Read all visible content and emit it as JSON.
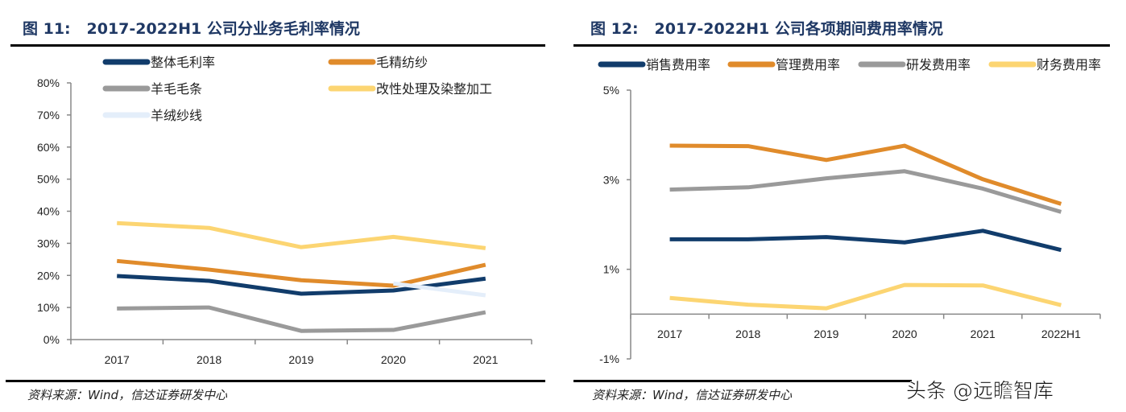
{
  "chart_data": [
    {
      "type": "line",
      "title": "图 11:   2017-2022H1 公司分业务毛利率情况",
      "categories": [
        "2017",
        "2018",
        "2019",
        "2020",
        "2021"
      ],
      "ylim": [
        0,
        80
      ],
      "yticks": [
        "0%",
        "10%",
        "20%",
        "30%",
        "40%",
        "50%",
        "60%",
        "70%",
        "80%"
      ],
      "grid": false,
      "legend": "top",
      "source": "资料来源：Wind，信达证券研发中心",
      "series": [
        {
          "name": "整体毛利率",
          "color": "#113c6b",
          "values": [
            19.8,
            18.3,
            14.3,
            15.3,
            19.0
          ]
        },
        {
          "name": "毛精纺纱",
          "color": "#e08b2b",
          "values": [
            24.5,
            21.8,
            18.5,
            16.8,
            23.3
          ]
        },
        {
          "name": "羊毛毛条",
          "color": "#9a9a9a",
          "values": [
            9.7,
            10.0,
            2.7,
            3.0,
            8.5
          ]
        },
        {
          "name": "改性处理及染整加工",
          "color": "#fcd572",
          "values": [
            36.3,
            34.8,
            28.8,
            32.0,
            28.5
          ]
        },
        {
          "name": "羊绒纱线",
          "color": "#e4eefa",
          "values": [
            null,
            null,
            null,
            17.5,
            13.8
          ]
        }
      ]
    },
    {
      "type": "line",
      "title": "图 12:   2017-2022H1 公司各项期间费用率情况",
      "categories": [
        "2017",
        "2018",
        "2019",
        "2020",
        "2021",
        "2022H1"
      ],
      "ylim": [
        -1,
        5
      ],
      "yticks": [
        "-1%",
        "1%",
        "3%",
        "5%"
      ],
      "grid": false,
      "legend": "top",
      "source": "资料来源：Wind，信达证券研发中心",
      "series": [
        {
          "name": "销售费用率",
          "color": "#113c6b",
          "values": [
            1.67,
            1.67,
            1.72,
            1.6,
            1.86,
            1.43
          ]
        },
        {
          "name": "管理费用率",
          "color": "#e08b2b",
          "values": [
            3.76,
            3.75,
            3.44,
            3.76,
            3.01,
            2.46
          ]
        },
        {
          "name": "研发费用率",
          "color": "#9a9a9a",
          "values": [
            2.78,
            2.83,
            3.03,
            3.19,
            2.8,
            2.28
          ]
        },
        {
          "name": "财务费用率",
          "color": "#fcd572",
          "values": [
            0.36,
            0.21,
            0.13,
            0.65,
            0.64,
            0.2
          ]
        }
      ]
    }
  ],
  "watermark": "头条 @远瞻智库"
}
